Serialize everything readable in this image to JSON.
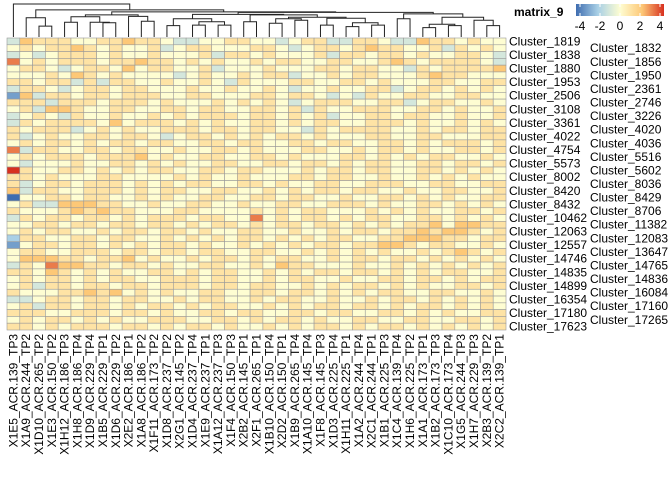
{
  "chart_data": {
    "type": "heatmap",
    "title": "",
    "legend": {
      "title": "matrix_9",
      "ticks": [
        4,
        2,
        0,
        -2,
        -4
      ],
      "placement": "right",
      "colors": {
        "-4": "#3F6DB0",
        "-2": "#A9D0E6",
        "0": "#FEFDD2",
        "2": "#FDC877",
        "4": "#D7301F"
      }
    },
    "value_encoding": "each character d encodes value d-4",
    "row_labels": [
      "Cluster_1819",
      "Cluster_1832",
      "Cluster_1838",
      "Cluster_1856",
      "Cluster_1880",
      "Cluster_1950",
      "Cluster_1953",
      "Cluster_2361",
      "Cluster_2506",
      "Cluster_2746",
      "Cluster_3108",
      "Cluster_3226",
      "Cluster_3361",
      "Cluster_4020",
      "Cluster_4022",
      "Cluster_4036",
      "Cluster_4754",
      "Cluster_5516",
      "Cluster_5573",
      "Cluster_5602",
      "Cluster_8002",
      "Cluster_8036",
      "Cluster_8420",
      "Cluster_8429",
      "Cluster_8432",
      "Cluster_8706",
      "Cluster_10462",
      "Cluster_11382",
      "Cluster_12063",
      "Cluster_12083",
      "Cluster_12557",
      "Cluster_13647",
      "Cluster_14746",
      "Cluster_14765",
      "Cluster_14835",
      "Cluster_14836",
      "Cluster_14899",
      "Cluster_16084",
      "Cluster_16354",
      "Cluster_17160",
      "Cluster_17180",
      "Cluster_17265",
      "Cluster_17623"
    ],
    "col_labels": [
      "X1E5_ACR.139_TP3",
      "X1A9_ACR.244_TP2",
      "X1D10_ACR.265_TP2",
      "X1E3_ACR.150_TP2",
      "X1H12_ACR.186_TP3",
      "X1H8_ACR.186_TP4",
      "X1D9_ACR.229_TP4",
      "X1B5_ACR.229_TP1",
      "X1D6_ACR.229_TP2",
      "X2E2_ACR.186_TP1",
      "X1A8_ACR.186_TP2",
      "X1F11_ACR.173_TP2",
      "X1D8_ACR.237_TP2",
      "X2G1_ACR.145_TP2",
      "X1D4_ACR.237_TP4",
      "X1E9_ACR.237_TP1",
      "X1A12_ACR.237_TP3",
      "X1F4_ACR.150_TP3",
      "X2B2_ACR.145_TP1",
      "X2F1_ACR.265_TP1",
      "X1B10_ACR.150_TP4",
      "X2D2_ACR.150_TP1",
      "X1B9_ACR.265_TP4",
      "X1A10_ACR.145_TP4",
      "X1F8_ACR.145_TP3",
      "X1D3_ACR.225_TP4",
      "X1H11_ACR.225_TP1",
      "X1A2_ACR.244_TP4",
      "X2C1_ACR.244_TP1",
      "X1B1_ACR.225_TP3",
      "X1C4_ACR.139_TP4",
      "X1H6_ACR.225_TP2",
      "X1A1_ACR.173_TP1",
      "X1B2_ACR.173_TP3",
      "X1C10_ACR.173_TP4",
      "X1G5_ACR.244_TP3",
      "X1H7_ACR.229_TP3",
      "X2B3_ACR.139_TP2",
      "X2C2_ACR.139_TP1"
    ],
    "matrix": [
      "365554455655433445544345533554336554544",
      "454556545445345544455434554565544535454",
      "343455545445444535545444535545545445543",
      "745455545565545454454554455445654555543",
      "455434554645544534445444554554435455556",
      "444546545444434544545534454554445655444",
      "554553535544544543544455445545444554455",
      "355434554554445445445434454455345545454",
      "163554554555445544455455434354455445544",
      "555355545554544454545434555445534554454",
      "453665445544554554455453544555445545445",
      "345435445445454555455454534455455445445",
      "354555546455545454455454554455545445454",
      "545553454544555455455443545555445455455",
      "534544554554345545454554544455445544455",
      "454554545545544554554455455445545455545",
      "735544554554454455454445544545545445545",
      "454555455564544554455454445545454554454",
      "434445445545454455445545545455445545545",
      "854455454545544554554445455455445545454",
      "554544455444454544544455455445445454544",
      "534554555454545544554544554455544554455",
      "635544555454554455445454554554454455445",
      "044554554454544554455455445445545454455",
      "453366655445445544544554455545445545454",
      "544456565544455444454545544454545445545",
      "354554554545554554474545545455445545454",
      "445545545545545455454554554545455646655",
      "454554454554554544554454454554556566545",
      "255445545544545454554545455445566655455",
      "145545545454554544545454554556654554454",
      "455445554554554554455445454545445456545",
      "466655455645445455454554454554554545454",
      "354766554554544554454655444544545454545",
      "554654545445545455445454554554545455445",
      "454554545544555455445455445445545545455",
      "453554554554555455455445454554545445545",
      "544455656454544554455455454545544554454",
      "334554554554454554454554454454554545454",
      "453554554545545455445454554554545545454",
      "555445554554544554554455455445545454455",
      "454554545445554455454554544554455445545",
      "554545554554545545445454554545545454545"
    ]
  }
}
